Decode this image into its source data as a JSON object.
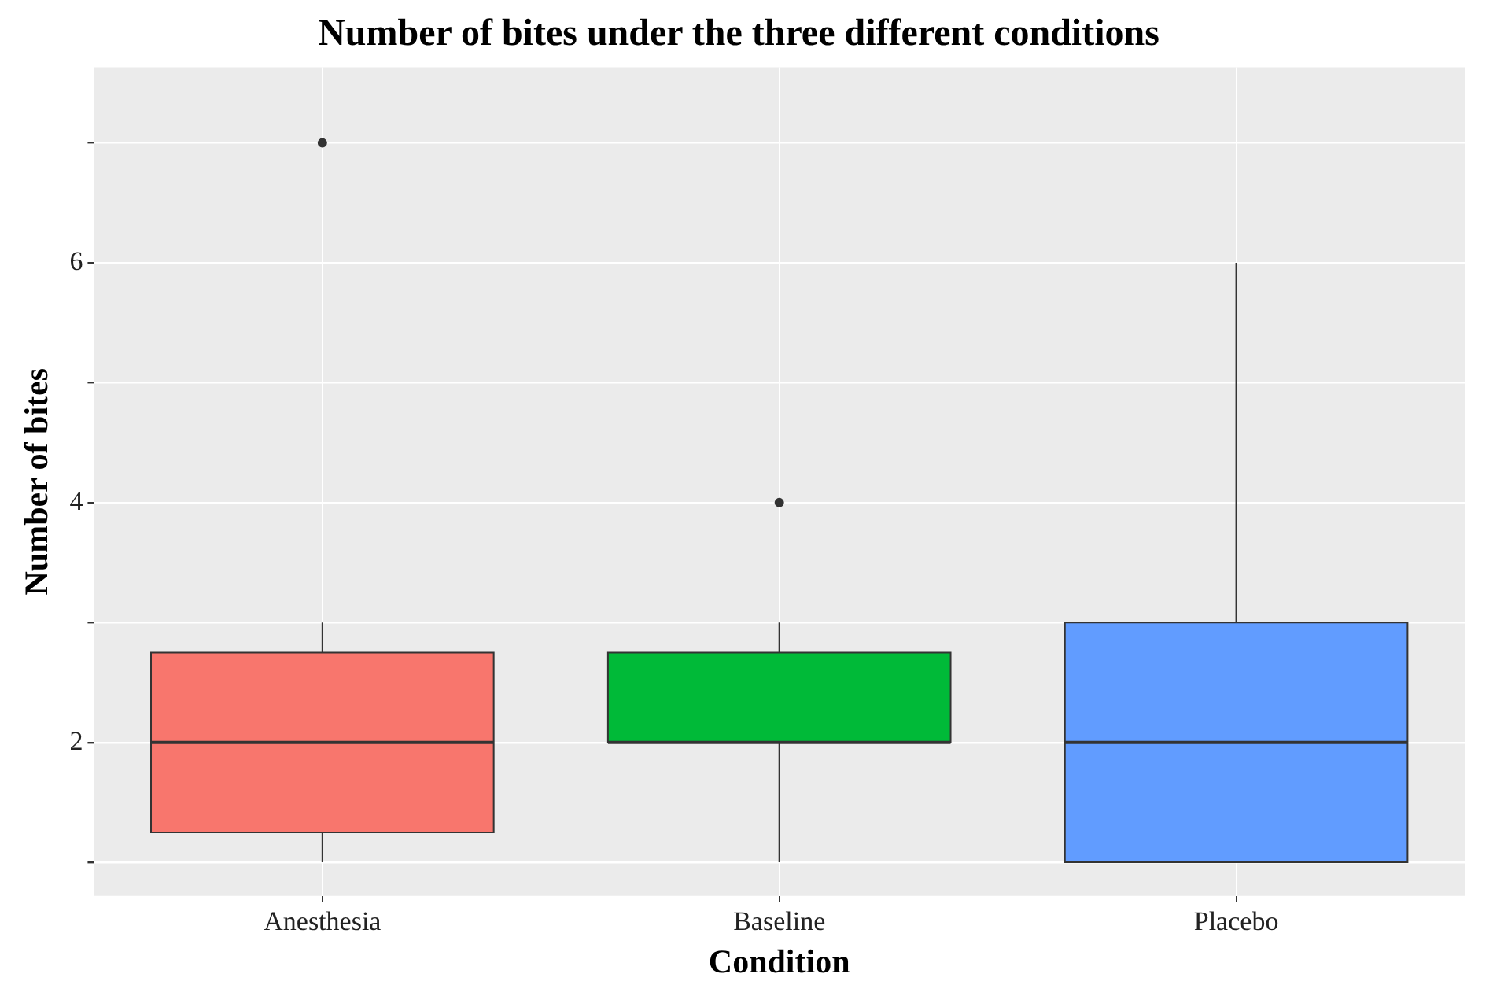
{
  "chart_data": {
    "type": "box",
    "title": "Number of bites under the three different conditions",
    "xlabel": "Condition",
    "ylabel": "Number of bites",
    "categories": [
      "Anesthesia",
      "Baseline",
      "Placebo"
    ],
    "colors": [
      "#f8766d",
      "#00ba38",
      "#619cff"
    ],
    "boxes": [
      {
        "low": 1,
        "q1": 1.25,
        "median": 2,
        "q3": 2.75,
        "high": 3,
        "outliers": [
          7
        ]
      },
      {
        "low": 1,
        "q1": 2,
        "median": 2,
        "q3": 2.75,
        "high": 3,
        "outliers": [
          4
        ]
      },
      {
        "low": 1,
        "q1": 1,
        "median": 2,
        "q3": 3,
        "high": 6
      }
    ],
    "ylim": [
      0.72,
      7.63
    ],
    "yticks": [
      {
        "value": 1,
        "label": null
      },
      2,
      {
        "value": 3,
        "label": null
      },
      4,
      {
        "value": 5,
        "label": null
      },
      6,
      {
        "value": 7,
        "label": null
      }
    ],
    "grid": true,
    "legend": false
  }
}
